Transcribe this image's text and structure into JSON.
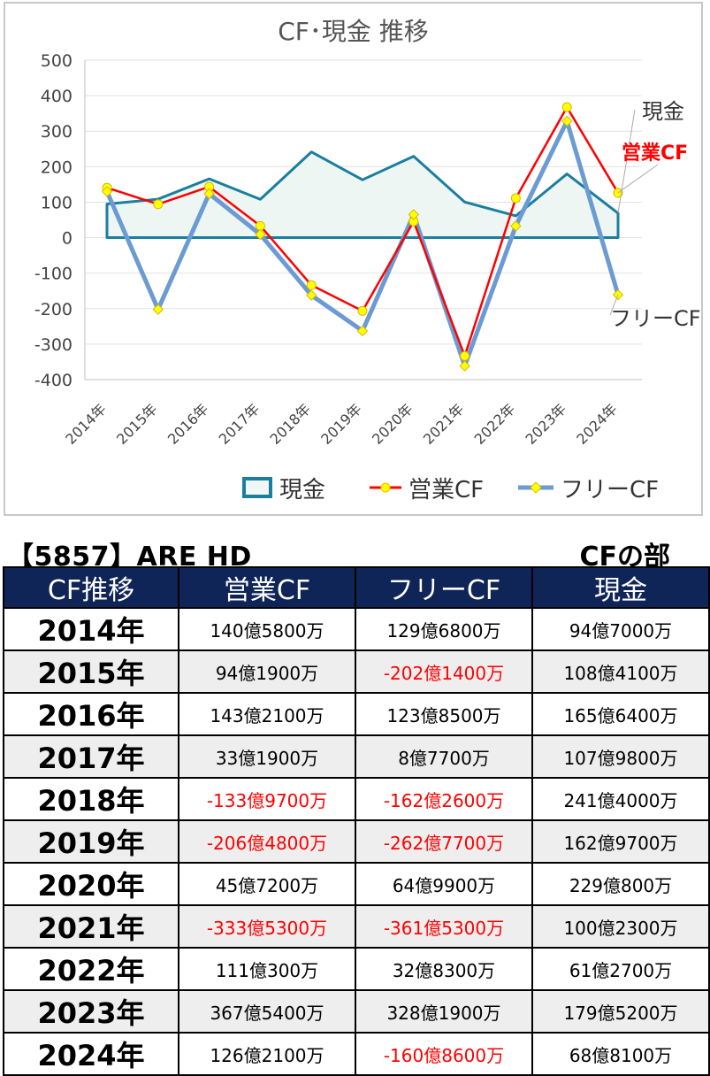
{
  "chart_data": {
    "type": "line",
    "title": "CF･現金 推移",
    "categories": [
      "2014年",
      "2015年",
      "2016年",
      "2017年",
      "2018年",
      "2019年",
      "2020年",
      "2021年",
      "2022年",
      "2023年",
      "2024年"
    ],
    "ylim": [
      -400,
      500
    ],
    "yticks": [
      500,
      400,
      300,
      200,
      100,
      0,
      -100,
      -200,
      -300,
      -400
    ],
    "grid": true,
    "legend_position": "bottom",
    "series": [
      {
        "name": "現金",
        "values": [
          94.7,
          108.41,
          165.64,
          107.98,
          241.4,
          162.97,
          229.08,
          100.23,
          61.27,
          179.52,
          68.81
        ],
        "color": "#1a7f9e",
        "style": "area",
        "end_label": "現金"
      },
      {
        "name": "営業CF",
        "values": [
          140.58,
          94.19,
          143.21,
          33.19,
          -133.97,
          -206.48,
          45.72,
          -333.53,
          111.03,
          367.54,
          126.21
        ],
        "color": "#ff0000",
        "style": "line",
        "end_label": "営業CF"
      },
      {
        "name": "フリーCF",
        "values": [
          129.68,
          -202.14,
          123.85,
          8.77,
          -162.26,
          -262.77,
          64.99,
          -361.53,
          32.83,
          328.19,
          -160.86
        ],
        "color": "#6b9bd2",
        "style": "line",
        "end_label": "フリーCF"
      }
    ]
  },
  "heading": {
    "company": "【5857】ARE HD",
    "section": "CFの部"
  },
  "table": {
    "headers": [
      "CF推移",
      "営業CF",
      "フリーCF",
      "現金"
    ],
    "rows": [
      {
        "year": "2014年",
        "op": "140億5800万",
        "free": "129億6800万",
        "cash": "94億7000万"
      },
      {
        "year": "2015年",
        "op": "94億1900万",
        "free": "-202億1400万",
        "cash": "108億4100万"
      },
      {
        "year": "2016年",
        "op": "143億2100万",
        "free": "123億8500万",
        "cash": "165億6400万"
      },
      {
        "year": "2017年",
        "op": "33億1900万",
        "free": "8億7700万",
        "cash": "107億9800万"
      },
      {
        "year": "2018年",
        "op": "-133億9700万",
        "free": "-162億2600万",
        "cash": "241億4000万"
      },
      {
        "year": "2019年",
        "op": "-206億4800万",
        "free": "-262億7700万",
        "cash": "162億9700万"
      },
      {
        "year": "2020年",
        "op": "45億7200万",
        "free": "64億9900万",
        "cash": "229億800万"
      },
      {
        "year": "2021年",
        "op": "-333億5300万",
        "free": "-361億5300万",
        "cash": "100億2300万"
      },
      {
        "year": "2022年",
        "op": "111億300万",
        "free": "32億8300万",
        "cash": "61億2700万"
      },
      {
        "year": "2023年",
        "op": "367億5400万",
        "free": "328億1900万",
        "cash": "179億5200万"
      },
      {
        "year": "2024年",
        "op": "126億2100万",
        "free": "-160億8600万",
        "cash": "68億8100万"
      }
    ]
  }
}
